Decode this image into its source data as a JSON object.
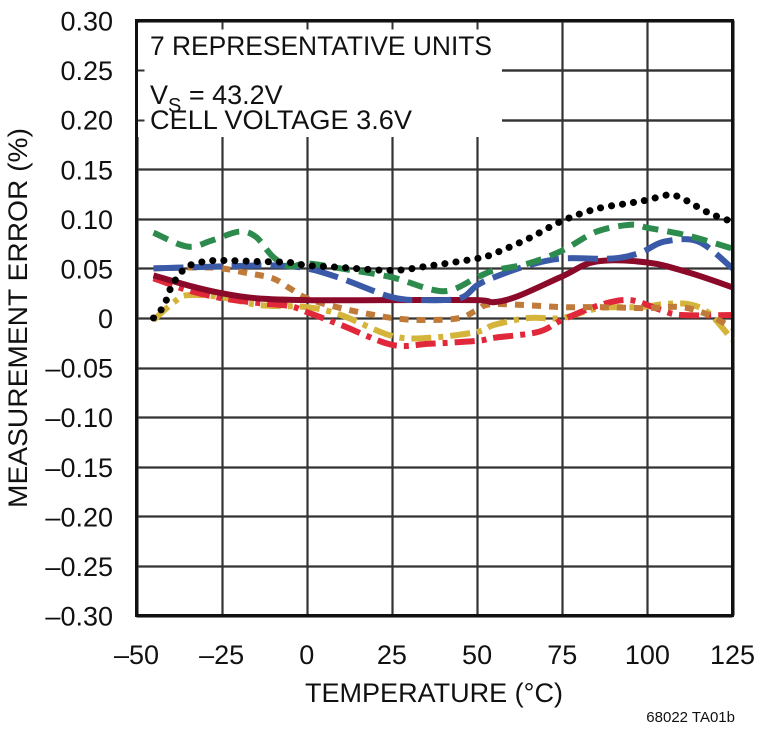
{
  "chart_data": {
    "type": "line",
    "title": "",
    "xlabel": "TEMPERATURE (°C)",
    "ylabel": "MEASUREMENT ERROR (%)",
    "xlim": [
      -50,
      125
    ],
    "ylim": [
      -0.3,
      0.3
    ],
    "x_ticks": [
      -50,
      -25,
      0,
      25,
      50,
      75,
      100,
      125
    ],
    "x_tick_labels": [
      "–50",
      "–25",
      "0",
      "25",
      "50",
      "75",
      "100",
      "125"
    ],
    "y_ticks": [
      0.3,
      0.25,
      0.2,
      0.15,
      0.1,
      0.05,
      0,
      -0.05,
      -0.1,
      -0.15,
      -0.2,
      -0.25,
      -0.3
    ],
    "y_tick_labels": [
      "0.30",
      "0.25",
      "0.20",
      "0.15",
      "0.10",
      "0.05",
      "0",
      "–0.05",
      "–0.10",
      "–0.15",
      "–0.20",
      "–0.25",
      "–0.30"
    ],
    "grid": true,
    "legend": null,
    "annotations": {
      "line1": "7 REPRESENTATIVE UNITS",
      "line2_main": "V",
      "line2_sub": "S",
      "line2_rest": " = 43.2V",
      "line3": "CELL VOLTAGE 3.6V"
    },
    "figure_id": "68022 TA01b",
    "series": [
      {
        "name": "unit-1-black-dotted",
        "color": "#000000",
        "style": "dotted",
        "x": [
          -45,
          -42,
          -40,
          -38,
          -35,
          -30,
          -25,
          -15,
          -5,
          0,
          10,
          25,
          35,
          50,
          55,
          65,
          75,
          85,
          95,
          100,
          106,
          110,
          118,
          125
        ],
        "y": [
          0.0,
          0.012,
          0.03,
          0.041,
          0.052,
          0.057,
          0.058,
          0.057,
          0.056,
          0.053,
          0.051,
          0.048,
          0.052,
          0.06,
          0.065,
          0.08,
          0.098,
          0.11,
          0.116,
          0.119,
          0.124,
          0.121,
          0.106,
          0.097
        ]
      },
      {
        "name": "unit-2-green-dashed",
        "color": "#2e8b4e",
        "style": "dashed",
        "x": [
          -45,
          -35,
          -28,
          -20,
          -15,
          -10,
          -5,
          0,
          10,
          25,
          40,
          50,
          55,
          65,
          75,
          85,
          95,
          100,
          112,
          125
        ],
        "y": [
          0.086,
          0.072,
          0.078,
          0.087,
          0.082,
          0.062,
          0.052,
          0.055,
          0.05,
          0.041,
          0.027,
          0.041,
          0.048,
          0.055,
          0.068,
          0.087,
          0.094,
          0.091,
          0.083,
          0.07
        ]
      },
      {
        "name": "unit-3-blue-long-dash",
        "color": "#3a5aa8",
        "style": "longdash",
        "x": [
          -45,
          -25,
          -10,
          0,
          10,
          25,
          35,
          45,
          50,
          55,
          65,
          75,
          90,
          98,
          105,
          115,
          125
        ],
        "y": [
          0.05,
          0.052,
          0.053,
          0.05,
          0.04,
          0.021,
          0.018,
          0.02,
          0.033,
          0.041,
          0.053,
          0.06,
          0.06,
          0.066,
          0.077,
          0.077,
          0.05
        ]
      },
      {
        "name": "unit-4-darkred-solid",
        "color": "#8b0a2a",
        "style": "solid",
        "x": [
          -45,
          -35,
          -25,
          -15,
          0,
          25,
          50,
          55,
          62,
          75,
          85,
          100,
          112,
          125
        ],
        "y": [
          0.043,
          0.033,
          0.025,
          0.02,
          0.018,
          0.018,
          0.018,
          0.016,
          0.022,
          0.042,
          0.057,
          0.056,
          0.046,
          0.031
        ]
      },
      {
        "name": "unit-5-brown-short-dash",
        "color": "#c07a3a",
        "style": "shortdash",
        "x": [
          -45,
          -32,
          -25,
          -17,
          -10,
          -5,
          0,
          10,
          25,
          36,
          45,
          50,
          55,
          75,
          85,
          100,
          110,
          118,
          125
        ],
        "y": [
          0.05,
          0.051,
          0.05,
          0.045,
          0.04,
          0.03,
          0.02,
          0.01,
          0.0,
          -0.002,
          0.0,
          0.008,
          0.014,
          0.011,
          0.011,
          0.01,
          0.011,
          0.003,
          -0.01
        ]
      },
      {
        "name": "unit-6-yellow-dash-dot",
        "color": "#d4b43a",
        "style": "dashdot",
        "x": [
          -45,
          -39,
          -35,
          -25,
          -14,
          0,
          10,
          25,
          36,
          50,
          55,
          65,
          75,
          86,
          98,
          105,
          112,
          118,
          125
        ],
        "y": [
          -0.002,
          0.016,
          0.023,
          0.021,
          0.013,
          0.011,
          0.003,
          -0.018,
          -0.02,
          -0.014,
          -0.007,
          0.0,
          0.0,
          0.01,
          0.011,
          0.014,
          0.014,
          0.005,
          -0.022
        ]
      },
      {
        "name": "unit-7-red-dash-dot",
        "color": "#e0283a",
        "style": "dashdot",
        "x": [
          -45,
          -35,
          -25,
          -14,
          -5,
          0,
          10,
          25,
          36,
          50,
          55,
          68,
          75,
          86,
          95,
          104,
          110,
          125
        ],
        "y": [
          0.04,
          0.028,
          0.02,
          0.015,
          0.012,
          0.006,
          -0.007,
          -0.027,
          -0.026,
          -0.023,
          -0.02,
          -0.014,
          -0.002,
          0.013,
          0.018,
          0.008,
          0.003,
          0.003
        ]
      }
    ]
  }
}
